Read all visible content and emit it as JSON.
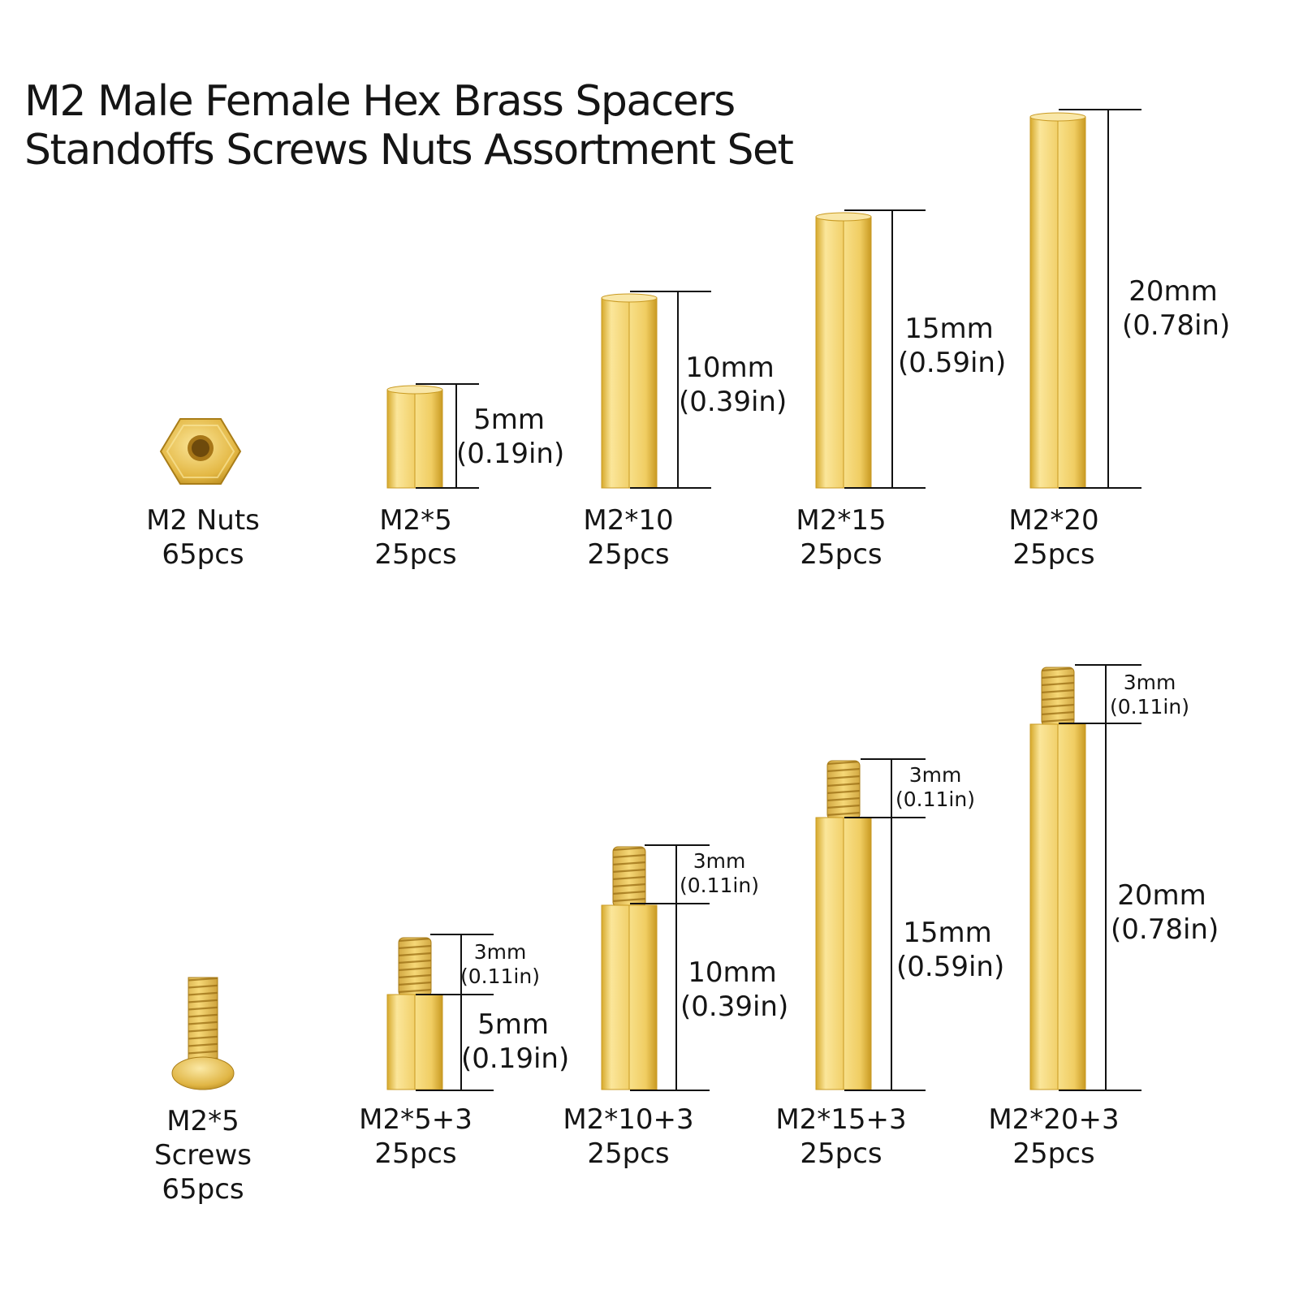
{
  "title": {
    "line1": "M2 Male Female Hex Brass Spacers",
    "line2": "Standoffs Screws Nuts Assortment Set"
  },
  "colors": {
    "brass_light": "#fbe69a",
    "brass_mid": "#e9c450",
    "brass_dark": "#c99a22",
    "line": "#111111"
  },
  "top_row": [
    {
      "name": "M2 Nuts",
      "qty": "65pcs"
    },
    {
      "name": "M2*5",
      "qty": "25pcs",
      "mm": "5mm",
      "inch": "(0.19in)"
    },
    {
      "name": "M2*10",
      "qty": "25pcs",
      "mm": "10mm",
      "inch": "(0.39in)"
    },
    {
      "name": "M2*15",
      "qty": "25pcs",
      "mm": "15mm",
      "inch": "(0.59in)"
    },
    {
      "name": "M2*20",
      "qty": "25pcs",
      "mm": "20mm",
      "inch": "(0.78in)"
    }
  ],
  "bottom_row": [
    {
      "name": "M2*5",
      "name2": "Screws",
      "qty": "65pcs"
    },
    {
      "name": "M2*5+3",
      "qty": "25pcs",
      "mm": "5mm",
      "inch": "(0.19in)",
      "thread_mm": "3mm",
      "thread_inch": "(0.11in)"
    },
    {
      "name": "M2*10+3",
      "qty": "25pcs",
      "mm": "10mm",
      "inch": "(0.39in)",
      "thread_mm": "3mm",
      "thread_inch": "(0.11in)"
    },
    {
      "name": "M2*15+3",
      "qty": "25pcs",
      "mm": "15mm",
      "inch": "(0.59in)",
      "thread_mm": "3mm",
      "thread_inch": "(0.11in)"
    },
    {
      "name": "M2*20+3",
      "qty": "25pcs",
      "mm": "20mm",
      "inch": "(0.78in)",
      "thread_mm": "3mm",
      "thread_inch": "(0.11in)"
    }
  ]
}
